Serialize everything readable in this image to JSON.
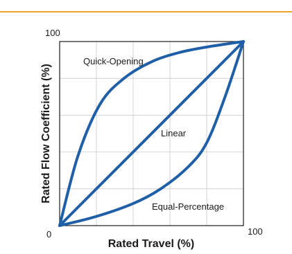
{
  "page": {
    "accent_color": "#f0a030"
  },
  "chart_data": {
    "type": "line",
    "xlabel": "Rated Travel (%)",
    "ylabel": "Rated Flow Coefficient (%)",
    "xlim": [
      0,
      100
    ],
    "ylim": [
      0,
      100
    ],
    "grid": true,
    "line_color": "#1f5fa8",
    "tick_labels": {
      "origin": "0",
      "y_max": "100",
      "x_max": "100"
    },
    "series": [
      {
        "name": "Quick-Opening",
        "x": [
          0,
          10,
          22,
          35,
          50,
          65,
          80,
          100
        ],
        "y": [
          0,
          38,
          66,
          80,
          89,
          94,
          97,
          100
        ]
      },
      {
        "name": "Linear",
        "x": [
          0,
          100
        ],
        "y": [
          0,
          100
        ]
      },
      {
        "name": "Equal-Percentage",
        "x": [
          0,
          20,
          40,
          55,
          70,
          80,
          90,
          100
        ],
        "y": [
          0,
          5,
          12,
          20,
          32,
          45,
          70,
          100
        ]
      }
    ]
  }
}
